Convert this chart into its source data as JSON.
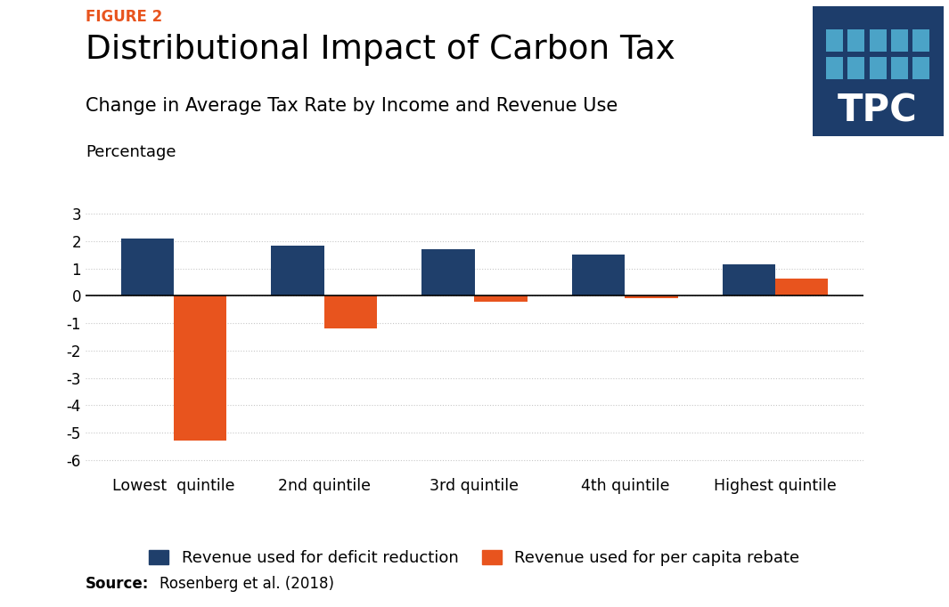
{
  "figure_label": "FIGURE 2",
  "title": "Distributional Impact of Carbon Tax",
  "subtitle": "Change in Average Tax Rate by Income and Revenue Use",
  "ylabel": "Percentage",
  "source_text": "Rosenberg et al. (2018)",
  "categories": [
    "Lowest  quintile",
    "2nd quintile",
    "3rd quintile",
    "4th quintile",
    "Highest quintile"
  ],
  "deficit_reduction": [
    2.1,
    1.85,
    1.7,
    1.5,
    1.15
  ],
  "per_capita_rebate": [
    -5.3,
    -1.2,
    -0.2,
    -0.08,
    0.65
  ],
  "blue_color": "#1F3F6B",
  "orange_color": "#E8541E",
  "ylim": [
    -6.5,
    3.5
  ],
  "yticks": [
    -6,
    -5,
    -4,
    -3,
    -2,
    -1,
    0,
    1,
    2,
    3
  ],
  "legend_label_blue": "Revenue used for deficit reduction",
  "legend_label_orange": "Revenue used for per capita rebate",
  "bar_width": 0.35,
  "figure_label_color": "#E8541E",
  "tpc_bg_color": "#1D3D6B",
  "tpc_sq_color": "#4BA3C7",
  "background_color": "#FFFFFF",
  "grid_color": "#C8C8C8"
}
